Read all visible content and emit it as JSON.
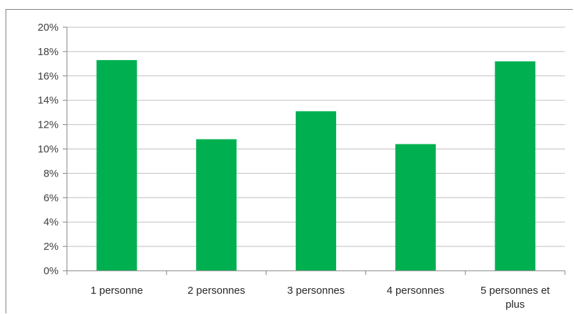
{
  "chart_data": {
    "type": "bar",
    "title": "",
    "xlabel": "",
    "ylabel": "",
    "categories": [
      [
        "1 personne"
      ],
      [
        "2 personnes"
      ],
      [
        "3 personnes"
      ],
      [
        "4 personnes"
      ],
      [
        "5 personnes et",
        "plus"
      ]
    ],
    "values": [
      0.173,
      0.108,
      0.131,
      0.104,
      0.172
    ],
    "ylim": [
      0,
      0.2
    ],
    "yticks": [
      "0%",
      "2%",
      "4%",
      "6%",
      "8%",
      "10%",
      "12%",
      "14%",
      "16%",
      "18%",
      "20%"
    ],
    "bar_color": "#00b050",
    "grid": true,
    "legend": "none"
  }
}
